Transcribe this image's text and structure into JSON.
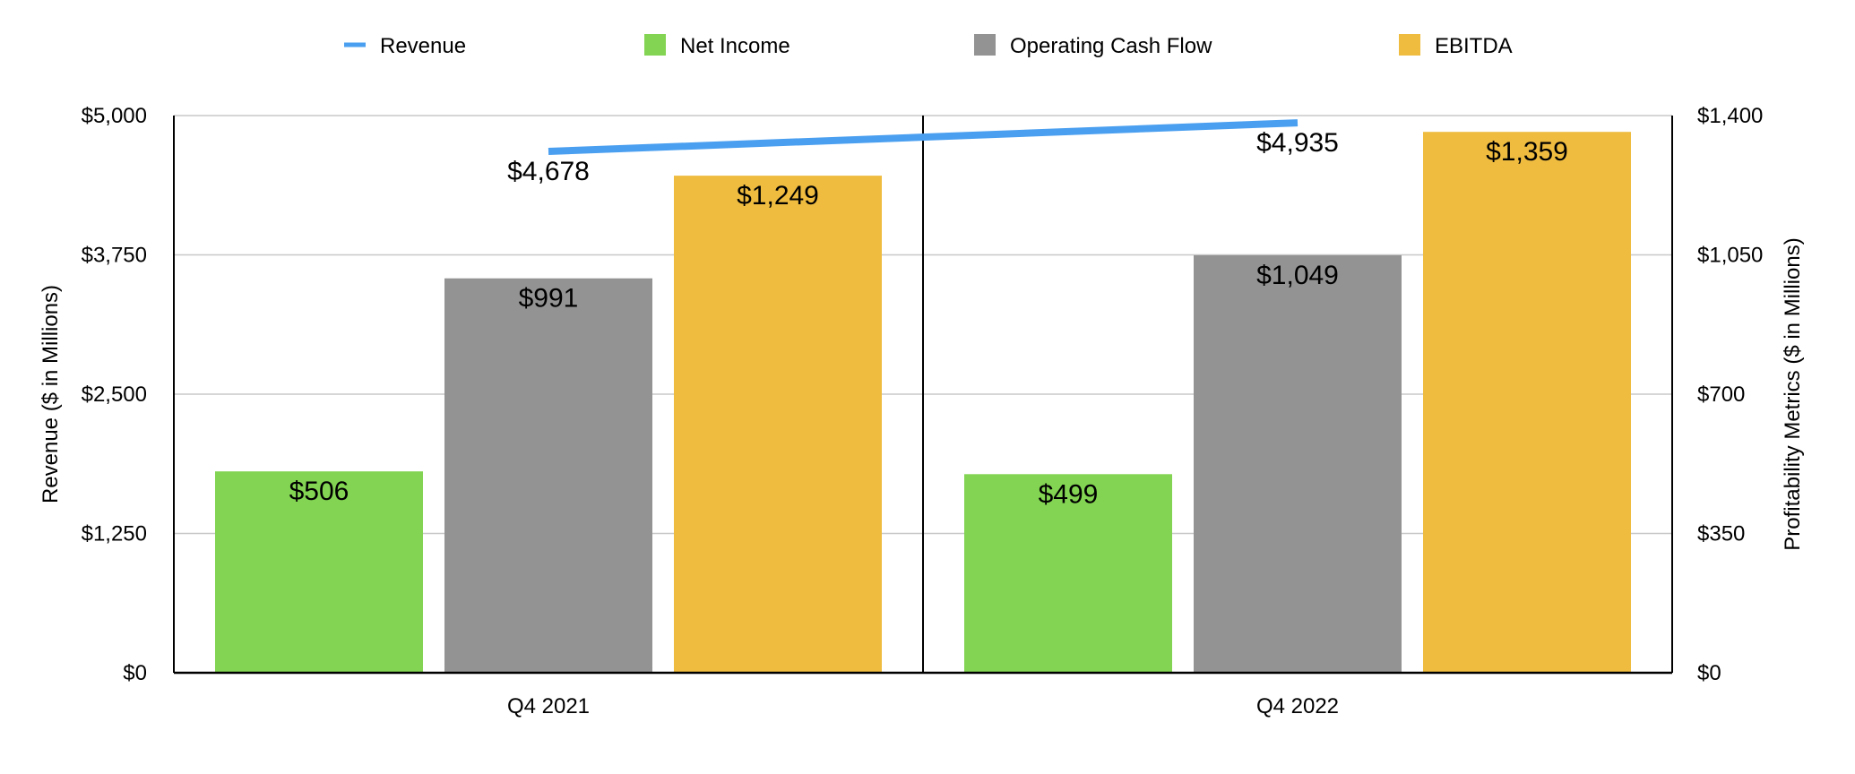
{
  "chart_data": {
    "type": "bar",
    "categories": [
      "Q4 2021",
      "Q4 2022"
    ],
    "left_axis": {
      "label": "Revenue ($ in Millions)",
      "range": [
        0,
        5000
      ],
      "ticks": [
        "$0",
        "$1,250",
        "$2,500",
        "$3,750",
        "$5,000"
      ]
    },
    "right_axis": {
      "label": "Profitability Metrics ($ in Millions)",
      "range": [
        0,
        1400
      ],
      "ticks": [
        "$0",
        "$350",
        "$700",
        "$1,050",
        "$1,400"
      ]
    },
    "series": [
      {
        "name": "Revenue",
        "type": "line",
        "axis": "left",
        "color": "#4a9ff0",
        "values": [
          4678,
          4935
        ],
        "labels": [
          "$4,678",
          "$4,935"
        ]
      },
      {
        "name": "Net Income",
        "type": "bar",
        "axis": "right",
        "color": "#82d452",
        "values": [
          506,
          499
        ],
        "labels": [
          "$506",
          "$499"
        ]
      },
      {
        "name": "Operating Cash Flow",
        "type": "bar",
        "axis": "right",
        "color": "#939393",
        "values": [
          991,
          1049
        ],
        "labels": [
          "$991",
          "$1,049"
        ]
      },
      {
        "name": "EBITDA",
        "type": "bar",
        "axis": "right",
        "color": "#efbc40",
        "values": [
          1249,
          1359
        ],
        "labels": [
          "$1,249",
          "$1,359"
        ]
      }
    ],
    "grid": true,
    "legend": "top"
  }
}
